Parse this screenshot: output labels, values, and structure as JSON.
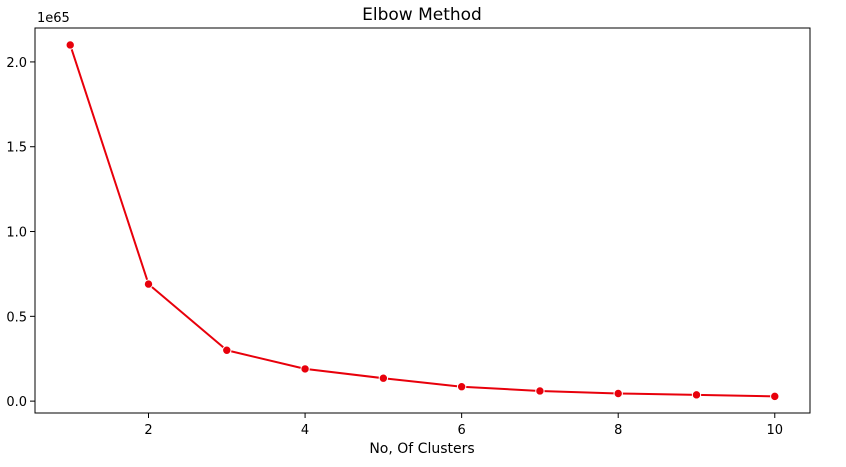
{
  "chart_data": {
    "type": "line",
    "title": "Elbow Method",
    "xlabel": "No, Of Clusters",
    "ylabel": "",
    "y_offset_label": "1e65",
    "x": [
      1,
      2,
      3,
      4,
      5,
      6,
      7,
      8,
      9,
      10
    ],
    "series": [
      {
        "values": [
          2.1,
          0.69,
          0.3,
          0.19,
          0.135,
          0.085,
          0.06,
          0.045,
          0.037,
          0.028
        ],
        "color": "#e8000b",
        "marker": "circle"
      }
    ],
    "xlim": [
      0.55,
      10.45
    ],
    "ylim": [
      -0.07,
      2.2
    ],
    "xticks": [
      2,
      4,
      6,
      8,
      10
    ],
    "xtick_labels": [
      "2",
      "4",
      "6",
      "8",
      "10"
    ],
    "yticks": [
      0.0,
      0.5,
      1.0,
      1.5,
      2.0
    ],
    "ytick_labels": [
      "0.0",
      "0.5",
      "1.0",
      "1.5",
      "2.0"
    ],
    "grid": false,
    "legend": "none"
  }
}
